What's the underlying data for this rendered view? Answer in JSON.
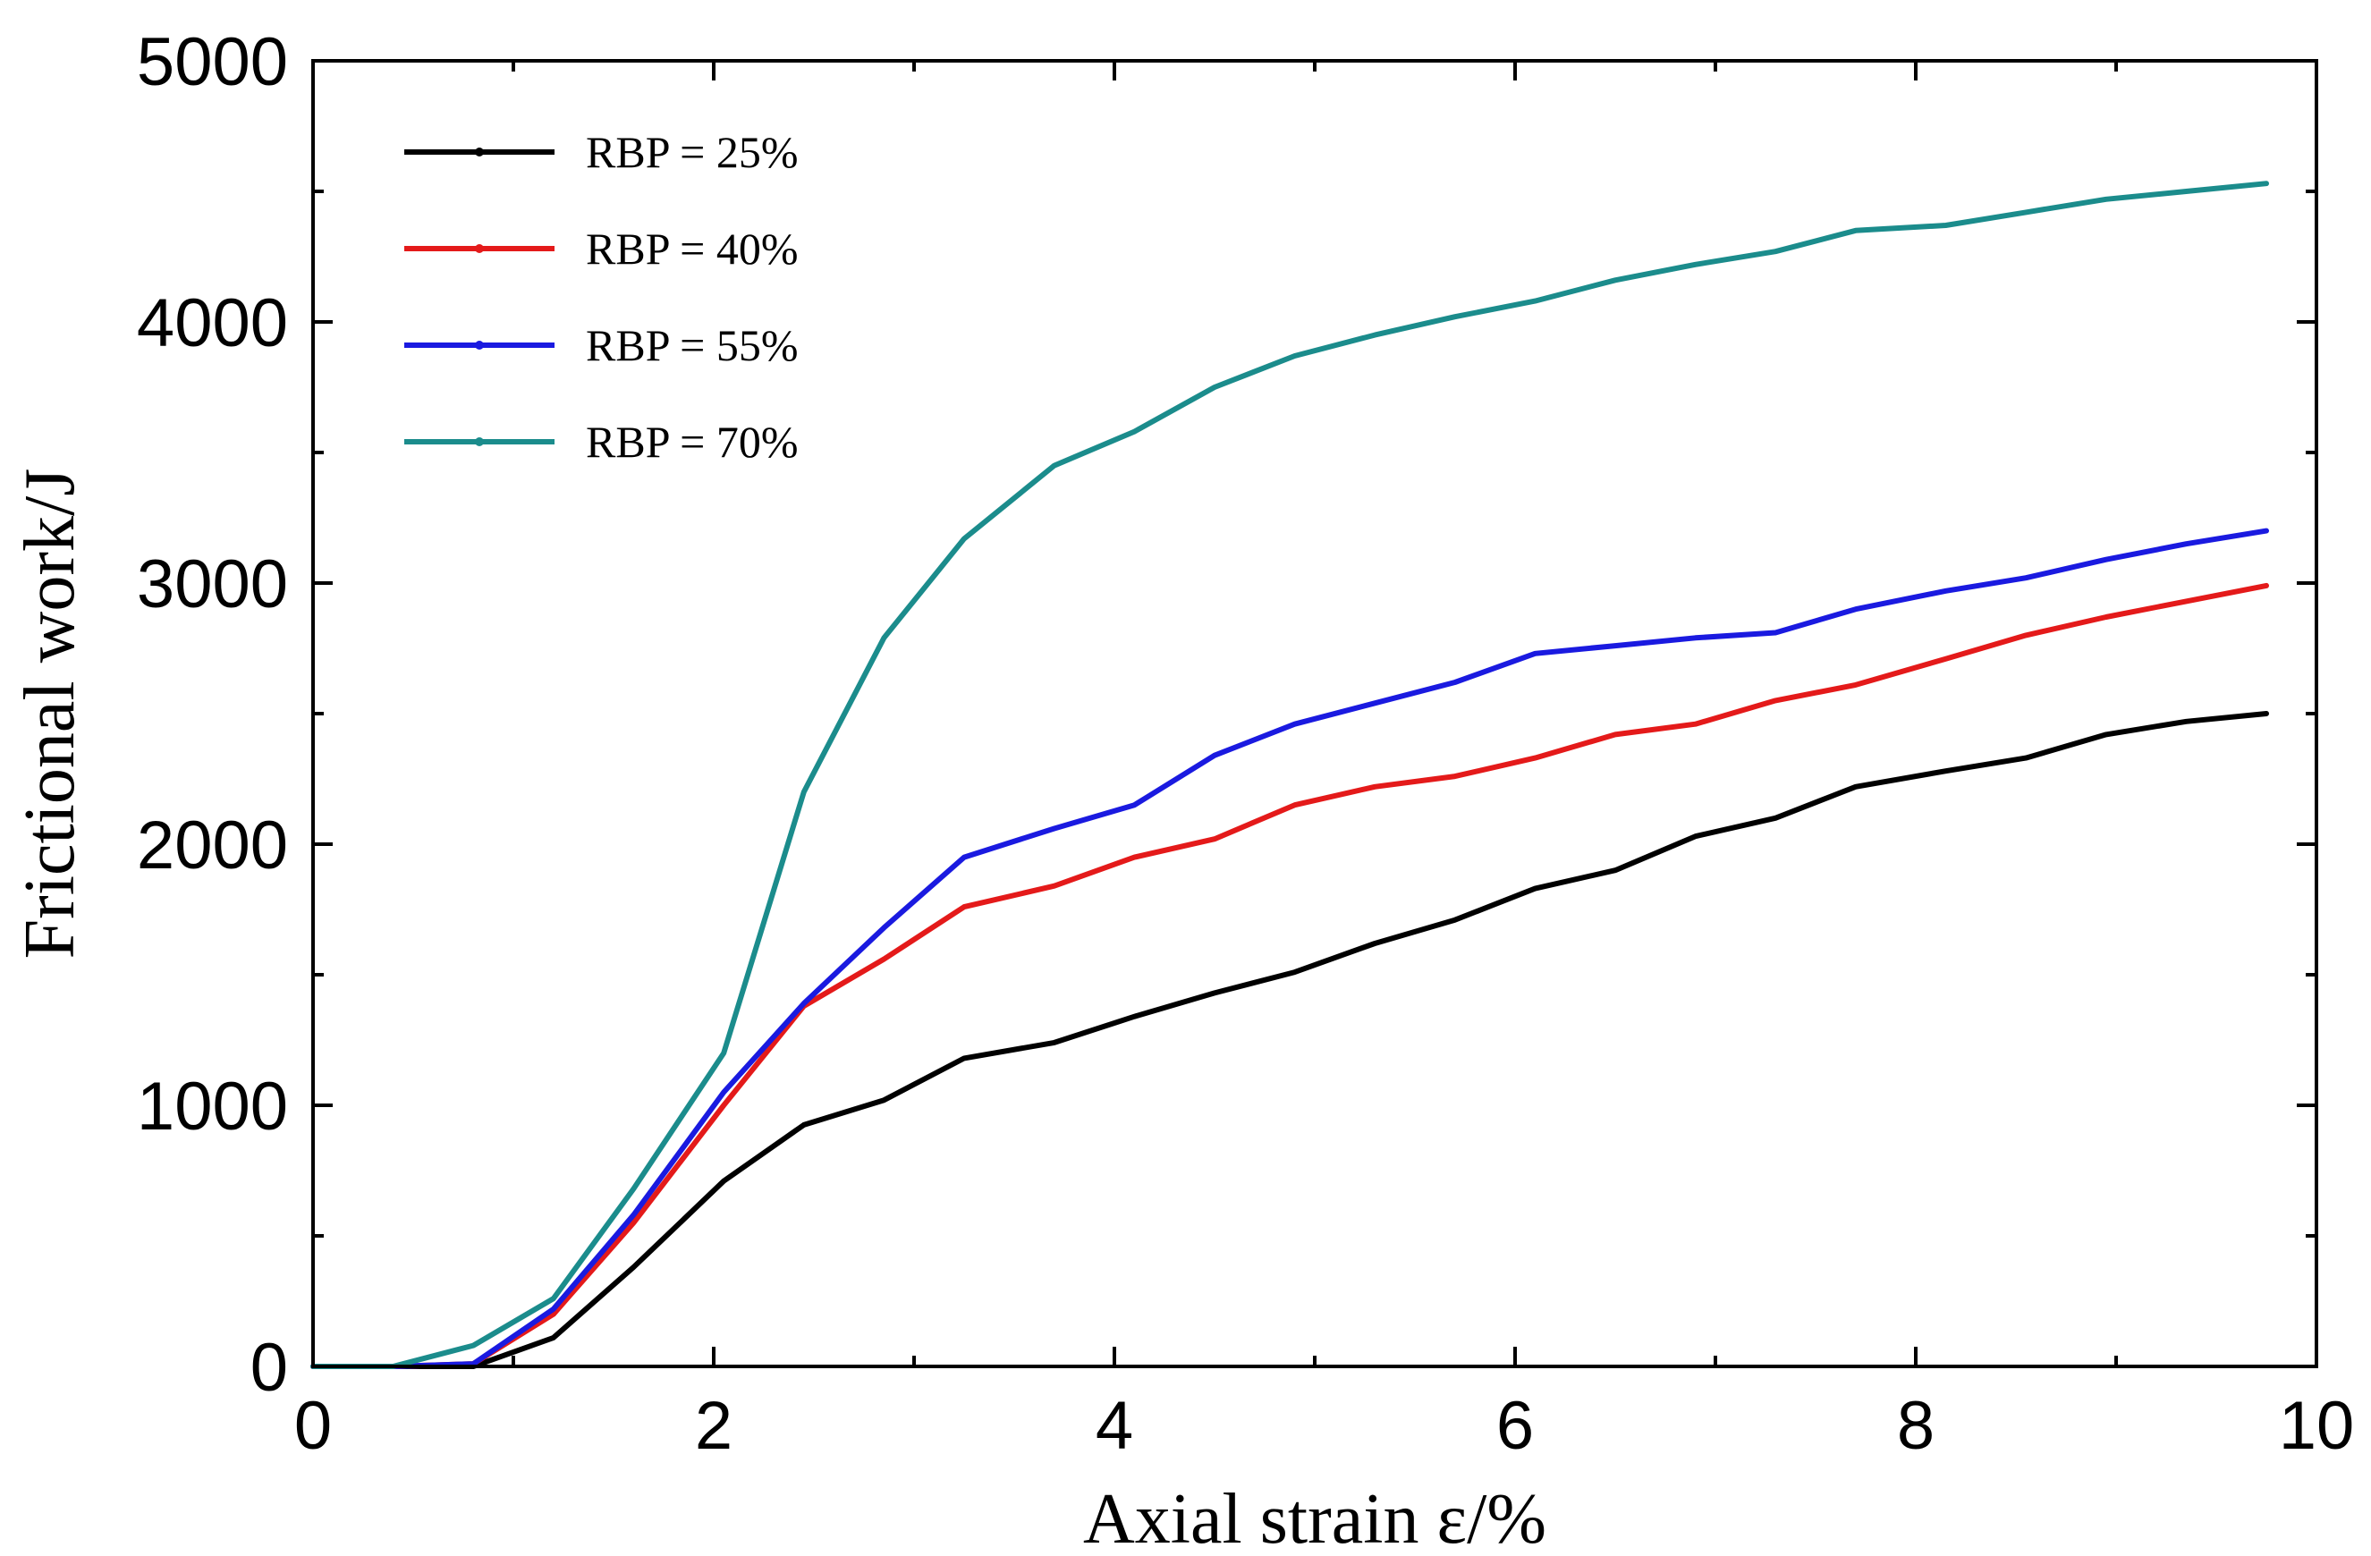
{
  "chart_data": {
    "type": "line",
    "title": "",
    "xlabel": "Axial strain ε/%",
    "ylabel": "Frictional work/J",
    "xlim": [
      0,
      10
    ],
    "ylim": [
      0,
      5000
    ],
    "xticks": [
      0,
      2,
      4,
      6,
      8,
      10
    ],
    "yticks": [
      0,
      1000,
      2000,
      3000,
      4000,
      5000
    ],
    "grid": false,
    "legend_position": "top-left",
    "series": [
      {
        "name": "RBP = 25%",
        "color": "#000000",
        "points": [
          [
            0.0,
            0
          ],
          [
            0.4,
            0
          ],
          [
            0.8,
            0
          ],
          [
            1.2,
            110
          ],
          [
            1.6,
            380
          ],
          [
            2.05,
            710
          ],
          [
            2.45,
            925
          ],
          [
            2.85,
            1020
          ],
          [
            3.25,
            1180
          ],
          [
            3.7,
            1240
          ],
          [
            4.1,
            1340
          ],
          [
            4.5,
            1430
          ],
          [
            4.9,
            1510
          ],
          [
            5.3,
            1620
          ],
          [
            5.7,
            1710
          ],
          [
            6.1,
            1830
          ],
          [
            6.5,
            1900
          ],
          [
            6.9,
            2030
          ],
          [
            7.3,
            2100
          ],
          [
            7.7,
            2220
          ],
          [
            8.15,
            2280
          ],
          [
            8.55,
            2330
          ],
          [
            8.95,
            2420
          ],
          [
            9.35,
            2470
          ],
          [
            9.75,
            2500
          ]
        ]
      },
      {
        "name": "RBP = 40%",
        "color": "#e41a1a",
        "points": [
          [
            0.0,
            0
          ],
          [
            0.4,
            0
          ],
          [
            0.8,
            10
          ],
          [
            1.2,
            200
          ],
          [
            1.6,
            550
          ],
          [
            2.05,
            1000
          ],
          [
            2.45,
            1380
          ],
          [
            2.85,
            1560
          ],
          [
            3.25,
            1760
          ],
          [
            3.7,
            1840
          ],
          [
            4.1,
            1950
          ],
          [
            4.5,
            2020
          ],
          [
            4.9,
            2150
          ],
          [
            5.3,
            2220
          ],
          [
            5.7,
            2260
          ],
          [
            6.1,
            2330
          ],
          [
            6.5,
            2420
          ],
          [
            6.9,
            2460
          ],
          [
            7.3,
            2550
          ],
          [
            7.7,
            2610
          ],
          [
            8.15,
            2710
          ],
          [
            8.55,
            2800
          ],
          [
            8.95,
            2870
          ],
          [
            9.35,
            2930
          ],
          [
            9.75,
            2990
          ]
        ]
      },
      {
        "name": "RBP = 55%",
        "color": "#1a1ae0",
        "points": [
          [
            0.0,
            0
          ],
          [
            0.4,
            0
          ],
          [
            0.8,
            10
          ],
          [
            1.2,
            220
          ],
          [
            1.6,
            580
          ],
          [
            2.05,
            1050
          ],
          [
            2.45,
            1390
          ],
          [
            2.85,
            1680
          ],
          [
            3.25,
            1950
          ],
          [
            3.7,
            2060
          ],
          [
            4.1,
            2150
          ],
          [
            4.5,
            2340
          ],
          [
            4.9,
            2460
          ],
          [
            5.3,
            2540
          ],
          [
            5.7,
            2620
          ],
          [
            6.1,
            2730
          ],
          [
            6.5,
            2760
          ],
          [
            6.9,
            2790
          ],
          [
            7.3,
            2810
          ],
          [
            7.7,
            2900
          ],
          [
            8.15,
            2970
          ],
          [
            8.55,
            3020
          ],
          [
            8.95,
            3090
          ],
          [
            9.35,
            3150
          ],
          [
            9.75,
            3200
          ]
        ]
      },
      {
        "name": "RBP = 70%",
        "color": "#1b8c8c",
        "points": [
          [
            0.0,
            0
          ],
          [
            0.4,
            0
          ],
          [
            0.8,
            80
          ],
          [
            1.2,
            260
          ],
          [
            1.6,
            680
          ],
          [
            2.05,
            1200
          ],
          [
            2.45,
            2200
          ],
          [
            2.85,
            2790
          ],
          [
            3.25,
            3170
          ],
          [
            3.7,
            3450
          ],
          [
            4.1,
            3580
          ],
          [
            4.5,
            3750
          ],
          [
            4.9,
            3870
          ],
          [
            5.3,
            3950
          ],
          [
            5.7,
            4020
          ],
          [
            6.1,
            4080
          ],
          [
            6.5,
            4160
          ],
          [
            6.9,
            4220
          ],
          [
            7.3,
            4270
          ],
          [
            7.7,
            4350
          ],
          [
            8.15,
            4370
          ],
          [
            8.55,
            4420
          ],
          [
            8.95,
            4470
          ],
          [
            9.35,
            4500
          ],
          [
            9.75,
            4530
          ]
        ]
      }
    ]
  }
}
